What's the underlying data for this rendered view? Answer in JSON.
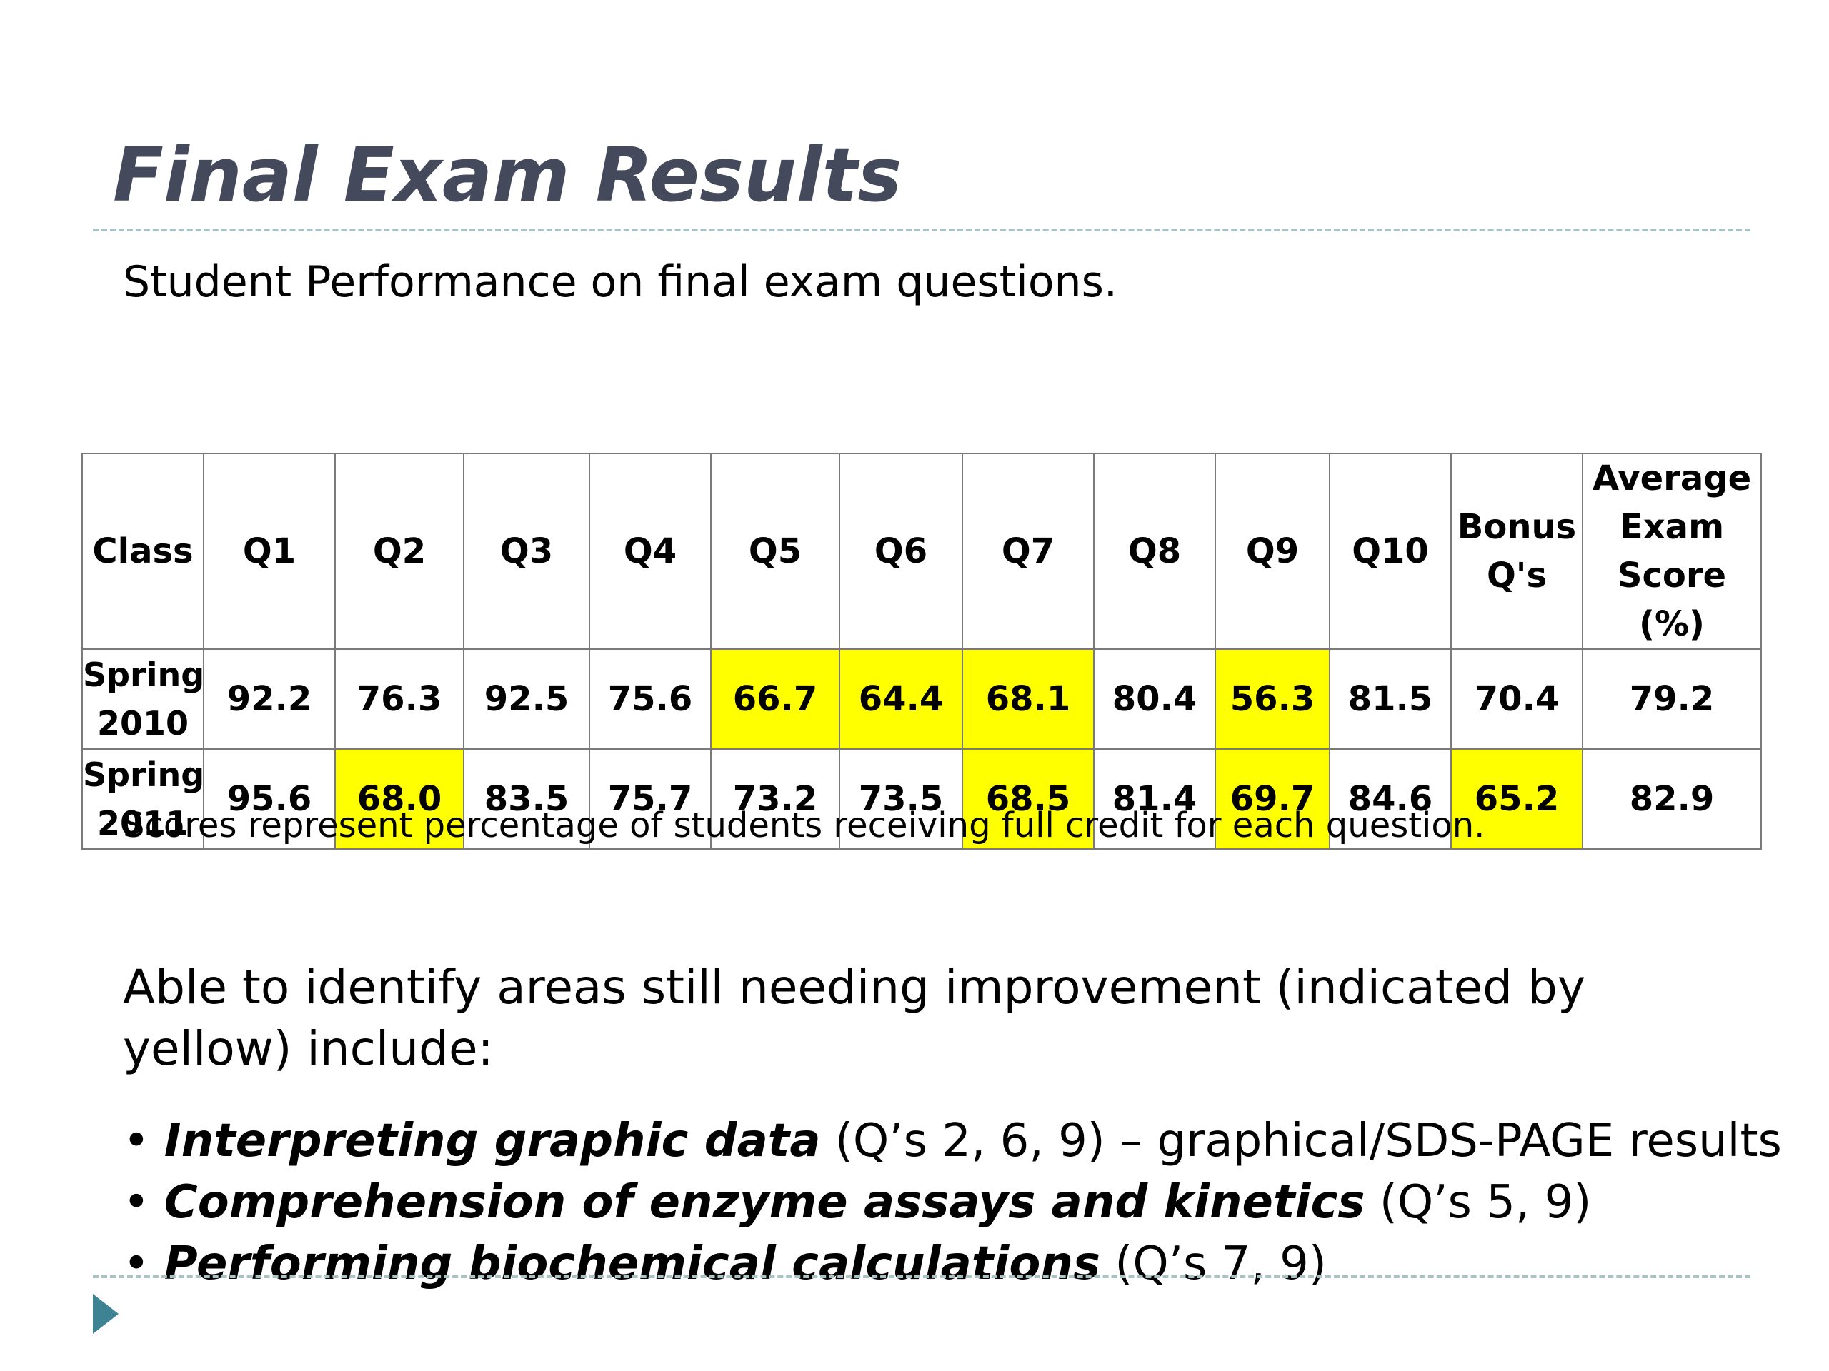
{
  "slide": {
    "title": "Final Exam Results",
    "subtitle": "Student Performance on final exam questions.",
    "footnote": "Scores represent percentage of students receiving full credit for each question.",
    "intro": "Able to identify areas still needing improvement (indicated by yellow) include:"
  },
  "table": {
    "headers": [
      "Class",
      "Q1",
      "Q2",
      "Q3",
      "Q4",
      "Q5",
      "Q6",
      "Q7",
      "Q8",
      "Q9",
      "Q10",
      "Bonus Q's",
      "Average Exam Score (%)"
    ],
    "rows": [
      {
        "label": "Spring 2010",
        "values": [
          "92.2",
          "76.3",
          "92.5",
          "75.6",
          "66.7",
          "64.4",
          "68.1",
          "80.4",
          "56.3",
          "81.5",
          "70.4",
          "79.2"
        ],
        "highlighted": [
          "Q5",
          "Q6",
          "Q7",
          "Q9"
        ]
      },
      {
        "label": "Spring 2011",
        "values": [
          "95.6",
          "68.0",
          "83.5",
          "75.7",
          "73.2",
          "73.5",
          "68.5",
          "81.4",
          "69.7",
          "84.6",
          "65.2",
          "82.9"
        ],
        "highlighted": [
          "Q2",
          "Q7",
          "Q9",
          "Bonus Q's"
        ]
      }
    ],
    "highlight_color": "#ffff00"
  },
  "bullets": [
    {
      "topic": "Interpreting graphic data",
      "detail": " (Q’s 2, 6, 9) – graphical/SDS-PAGE results"
    },
    {
      "topic": "Comprehension of enzyme assays and kinetics",
      "detail": " (Q’s 5, 9)"
    },
    {
      "topic": "Performing biochemical calculations",
      "detail": " (Q’s 7, 9)"
    }
  ],
  "bullet_symbol": "•",
  "colors": {
    "title": "#444a5c",
    "rule": "#a9c2c6",
    "nav_arrow": "#3d8393"
  },
  "icons": {
    "nav_arrow": "play-triangle-icon"
  }
}
